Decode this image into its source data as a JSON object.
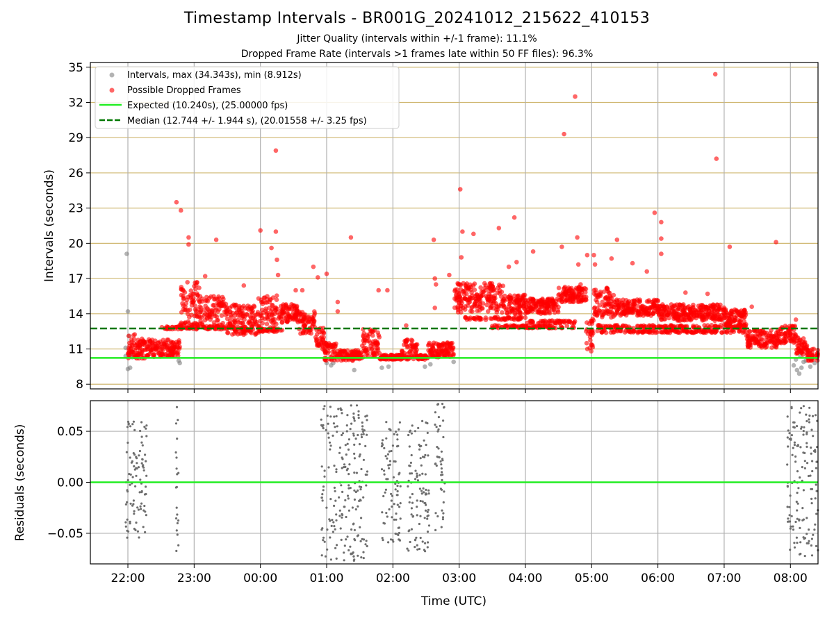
{
  "title": "Timestamp Intervals - BR001G_20241012_215622_410153",
  "subtitle_1": "Jitter Quality (intervals within +/-1 frame): 11.1%",
  "subtitle_2": "Dropped Frame Rate (intervals >1 frames late within 50 FF files): 96.3%",
  "colors": {
    "intervals": "#808080",
    "dropped": "#ff0000",
    "expected": "#22ee22",
    "median": "#007700",
    "hgrid": "#cfb770",
    "vgrid": "#b0b0b0",
    "residuals": "#6e6e6e"
  },
  "chart_data": [
    {
      "type": "scatter",
      "ylabel": "Intervals (seconds)",
      "ylim": [
        7.6,
        35.4
      ],
      "xlim": [
        "21:26",
        "08:25"
      ],
      "yticks": [
        "8",
        "11",
        "14",
        "17",
        "20",
        "23",
        "26",
        "29",
        "32",
        "35"
      ],
      "grid": "on",
      "legend_position": "top-left",
      "legend": [
        "Intervals, max (34.343s), min (8.912s)",
        "Possible Dropped Frames",
        "Expected (10.240s), (25.00000 fps)",
        "Median (12.744 +/- 1.944 s), (20.01558 +/- 3.25 fps)"
      ],
      "expected_interval": 10.24,
      "median_interval": 12.744,
      "max_interval": 34.343,
      "min_interval": 8.912,
      "series": [
        {
          "name": "Intervals",
          "points": [
            [
              "21:59",
              19.1
            ],
            [
              "22:00",
              14.2
            ],
            [
              "22:01",
              12.1
            ],
            [
              "21:58",
              11.1
            ],
            [
              "22:02",
              9.4
            ],
            [
              "22:00",
              9.3
            ],
            [
              "21:58",
              10.4
            ],
            [
              "22:03",
              10.5
            ],
            [
              "22:04",
              10.3
            ],
            [
              "22:46",
              10.0
            ],
            [
              "22:47",
              9.8
            ],
            [
              "01:00",
              9.8
            ],
            [
              "01:04",
              9.6
            ],
            [
              "01:06",
              9.8
            ],
            [
              "01:25",
              9.2
            ],
            [
              "01:50",
              9.4
            ],
            [
              "01:56",
              9.5
            ],
            [
              "02:29",
              9.5
            ],
            [
              "02:34",
              9.7
            ],
            [
              "02:55",
              9.9
            ],
            [
              "08:03",
              9.6
            ],
            [
              "08:06",
              9.2
            ],
            [
              "08:08",
              8.9
            ],
            [
              "08:10",
              9.4
            ],
            [
              "08:14",
              10.0
            ],
            [
              "08:18",
              9.5
            ],
            [
              "08:22",
              9.8
            ],
            [
              "08:05",
              10.1
            ],
            [
              "08:09",
              10.4
            ],
            [
              "08:12",
              9.9
            ]
          ]
        },
        {
          "name": "Possible Dropped Frames",
          "points": [
            [
              "22:44",
              23.5
            ],
            [
              "22:48",
              22.8
            ],
            [
              "22:55",
              20.5
            ],
            [
              "22:55",
              19.9
            ],
            [
              "23:20",
              20.3
            ],
            [
              "23:10",
              17.2
            ],
            [
              "23:45",
              16.4
            ],
            [
              "00:00",
              21.1
            ],
            [
              "00:10",
              19.6
            ],
            [
              "00:14",
              21.0
            ],
            [
              "00:15",
              18.6
            ],
            [
              "00:16",
              17.3
            ],
            [
              "00:14",
              27.9
            ],
            [
              "00:32",
              16.0
            ],
            [
              "00:38",
              16.0
            ],
            [
              "00:48",
              18.0
            ],
            [
              "00:52",
              17.1
            ],
            [
              "01:00",
              17.4
            ],
            [
              "01:10",
              15.0
            ],
            [
              "01:10",
              14.2
            ],
            [
              "01:22",
              20.5
            ],
            [
              "01:47",
              16.0
            ],
            [
              "01:55",
              16.0
            ],
            [
              "02:12",
              13.0
            ],
            [
              "02:37",
              20.3
            ],
            [
              "02:38",
              17.0
            ],
            [
              "02:39",
              16.5
            ],
            [
              "02:38",
              14.5
            ],
            [
              "02:51",
              17.3
            ],
            [
              "03:01",
              24.6
            ],
            [
              "03:03",
              21.0
            ],
            [
              "03:02",
              18.8
            ],
            [
              "03:13",
              20.8
            ],
            [
              "03:36",
              21.3
            ],
            [
              "03:45",
              18.0
            ],
            [
              "03:50",
              22.2
            ],
            [
              "03:52",
              18.4
            ],
            [
              "04:07",
              19.3
            ],
            [
              "04:33",
              19.7
            ],
            [
              "04:35",
              29.3
            ],
            [
              "04:45",
              32.5
            ],
            [
              "04:47",
              20.5
            ],
            [
              "04:48",
              18.2
            ],
            [
              "04:50",
              16.5
            ],
            [
              "04:56",
              19.0
            ],
            [
              "05:02",
              19.0
            ],
            [
              "05:03",
              18.2
            ],
            [
              "05:18",
              18.7
            ],
            [
              "05:23",
              20.3
            ],
            [
              "05:37",
              18.3
            ],
            [
              "05:50",
              17.6
            ],
            [
              "05:57",
              22.6
            ],
            [
              "06:03",
              21.8
            ],
            [
              "06:03",
              20.4
            ],
            [
              "06:03",
              19.1
            ],
            [
              "06:25",
              15.8
            ],
            [
              "06:45",
              15.7
            ],
            [
              "06:52",
              34.4
            ],
            [
              "06:53",
              27.2
            ],
            [
              "07:00",
              14.0
            ],
            [
              "07:05",
              19.7
            ],
            [
              "07:25",
              14.6
            ],
            [
              "07:47",
              20.1
            ],
            [
              "08:05",
              13.5
            ],
            [
              "22:08",
              10.2
            ],
            [
              "22:10",
              10.2
            ],
            [
              "22:13",
              10.2
            ],
            [
              "22:15",
              10.2
            ],
            [
              "22:18",
              10.4
            ],
            [
              "22:40",
              10.4
            ],
            [
              "22:50",
              15.5
            ],
            [
              "23:05",
              15.0
            ],
            [
              "23:30",
              14.0
            ],
            [
              "23:55",
              13.5
            ],
            [
              "00:20",
              14.3
            ],
            [
              "00:40",
              13.0
            ],
            [
              "00:55",
              11.5
            ],
            [
              "01:05",
              10.4
            ],
            [
              "01:20",
              10.4
            ],
            [
              "01:35",
              10.8
            ],
            [
              "01:45",
              11.5
            ],
            [
              "01:52",
              10.3
            ],
            [
              "02:00",
              10.3
            ],
            [
              "02:10",
              10.3
            ],
            [
              "02:22",
              10.3
            ],
            [
              "02:35",
              10.8
            ],
            [
              "02:45",
              10.8
            ],
            [
              "03:05",
              15.3
            ],
            [
              "03:20",
              15.5
            ],
            [
              "03:35",
              16.2
            ],
            [
              "03:50",
              14.9
            ],
            [
              "04:05",
              14.5
            ],
            [
              "04:20",
              15.2
            ],
            [
              "04:30",
              15.6
            ],
            [
              "04:45",
              16.0
            ],
            [
              "04:55",
              12.5
            ],
            [
              "05:05",
              15.0
            ],
            [
              "05:15",
              14.8
            ],
            [
              "05:30",
              14.6
            ],
            [
              "05:45",
              14.4
            ],
            [
              "06:00",
              14.3
            ],
            [
              "06:15",
              14.2
            ],
            [
              "06:30",
              14.1
            ],
            [
              "06:45",
              14.0
            ],
            [
              "07:00",
              13.8
            ],
            [
              "07:15",
              13.8
            ],
            [
              "07:25",
              11.8
            ],
            [
              "07:35",
              11.8
            ],
            [
              "07:45",
              12.0
            ],
            [
              "07:55",
              12.3
            ],
            [
              "08:00",
              12.4
            ],
            [
              "08:10",
              10.8
            ],
            [
              "08:20",
              10.4
            ]
          ]
        },
        {
          "name": "Expected (10.240s), (25.00000 fps)",
          "values": [
            10.24
          ]
        },
        {
          "name": "Median (12.744 +/- 1.944 s), (20.01558 +/- 3.25 fps)",
          "values": [
            12.744
          ]
        }
      ],
      "bands": [
        {
          "start": "22:00",
          "end": "22:08",
          "low": 10.2,
          "high": 12.3
        },
        {
          "start": "22:08",
          "end": "22:20",
          "low": 10.4,
          "high": 12.0
        },
        {
          "start": "22:20",
          "end": "22:47",
          "low": 10.3,
          "high": 11.8
        },
        {
          "start": "22:47",
          "end": "23:05",
          "low": 13.0,
          "high": 16.8
        },
        {
          "start": "23:05",
          "end": "23:30",
          "low": 12.6,
          "high": 15.5
        },
        {
          "start": "23:30",
          "end": "23:58",
          "low": 12.2,
          "high": 14.8
        },
        {
          "start": "23:58",
          "end": "00:15",
          "low": 12.4,
          "high": 15.6
        },
        {
          "start": "00:15",
          "end": "00:35",
          "low": 13.2,
          "high": 14.8
        },
        {
          "start": "00:35",
          "end": "00:50",
          "low": 12.3,
          "high": 14.2
        },
        {
          "start": "00:50",
          "end": "00:58",
          "low": 11.0,
          "high": 12.8
        },
        {
          "start": "00:58",
          "end": "01:10",
          "low": 10.0,
          "high": 11.5
        },
        {
          "start": "01:10",
          "end": "01:32",
          "low": 10.0,
          "high": 10.9
        },
        {
          "start": "01:32",
          "end": "01:48",
          "low": 10.3,
          "high": 12.7
        },
        {
          "start": "01:48",
          "end": "02:08",
          "low": 10.1,
          "high": 10.5
        },
        {
          "start": "02:08",
          "end": "02:22",
          "low": 10.1,
          "high": 11.8
        },
        {
          "start": "02:22",
          "end": "02:32",
          "low": 10.1,
          "high": 10.5
        },
        {
          "start": "02:32",
          "end": "02:56",
          "low": 10.3,
          "high": 11.6
        },
        {
          "start": "02:56",
          "end": "03:40",
          "low": 14.1,
          "high": 16.6
        },
        {
          "start": "03:40",
          "end": "04:00",
          "low": 14.0,
          "high": 15.6
        },
        {
          "start": "04:00",
          "end": "04:30",
          "low": 14.0,
          "high": 15.3
        },
        {
          "start": "04:30",
          "end": "04:55",
          "low": 15.0,
          "high": 16.3
        },
        {
          "start": "04:55",
          "end": "05:02",
          "low": 10.8,
          "high": 14.2
        },
        {
          "start": "05:02",
          "end": "05:20",
          "low": 13.6,
          "high": 16.4
        },
        {
          "start": "05:20",
          "end": "06:00",
          "low": 13.8,
          "high": 15.2
        },
        {
          "start": "06:00",
          "end": "07:00",
          "low": 13.4,
          "high": 14.8
        },
        {
          "start": "07:00",
          "end": "07:20",
          "low": 13.0,
          "high": 14.4
        },
        {
          "start": "07:20",
          "end": "07:50",
          "low": 11.1,
          "high": 12.6
        },
        {
          "start": "07:50",
          "end": "08:05",
          "low": 11.5,
          "high": 13.0
        },
        {
          "start": "08:05",
          "end": "08:15",
          "low": 10.5,
          "high": 12.0
        },
        {
          "start": "08:15",
          "end": "08:25",
          "low": 10.0,
          "high": 11.0
        }
      ],
      "lower_rows": [
        {
          "start": "22:30",
          "end": "23:45",
          "value": 12.8
        },
        {
          "start": "23:45",
          "end": "00:20",
          "value": 12.6
        },
        {
          "start": "03:05",
          "end": "04:00",
          "value": 13.6
        },
        {
          "start": "03:30",
          "end": "04:45",
          "value": 12.9
        },
        {
          "start": "04:00",
          "end": "04:45",
          "value": 13.3
        },
        {
          "start": "05:05",
          "end": "07:20",
          "value": 12.5
        },
        {
          "start": "05:05",
          "end": "07:20",
          "value": 12.9
        }
      ]
    },
    {
      "type": "scatter",
      "xlabel": "Time (UTC)",
      "ylabel": "Residuals (seconds)",
      "ylim": [
        -0.08,
        0.08
      ],
      "yticks": [
        "0.05",
        "0.00",
        "−0.05"
      ],
      "xticks": [
        "22:00",
        "23:00",
        "00:00",
        "01:00",
        "02:00",
        "03:00",
        "04:00",
        "05:00",
        "06:00",
        "07:00",
        "08:00"
      ],
      "grid": "on",
      "zero_line": 0.0,
      "clusters": [
        {
          "start": "21:58",
          "end": "22:17",
          "low": -0.055,
          "high": 0.06
        },
        {
          "start": "22:43",
          "end": "22:47",
          "low": -0.072,
          "high": 0.075
        },
        {
          "start": "00:55",
          "end": "01:37",
          "low": -0.078,
          "high": 0.078
        },
        {
          "start": "01:50",
          "end": "02:07",
          "low": -0.06,
          "high": 0.06
        },
        {
          "start": "02:13",
          "end": "02:33",
          "low": -0.068,
          "high": 0.06
        },
        {
          "start": "02:38",
          "end": "02:47",
          "low": -0.05,
          "high": 0.078
        },
        {
          "start": "07:57",
          "end": "08:25",
          "low": -0.075,
          "high": 0.075
        }
      ]
    }
  ]
}
